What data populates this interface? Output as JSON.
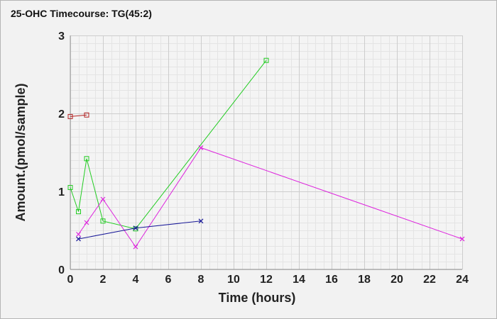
{
  "chart_data": {
    "type": "line",
    "title": "25-OHC Timecourse: TG(45:2)",
    "xlabel": "Time (hours)",
    "ylabel": "Amount.(pmol/sample)",
    "xlim": [
      0,
      24
    ],
    "ylim": [
      0,
      3
    ],
    "x_ticks": [
      "0",
      "2",
      "4",
      "6",
      "8",
      "10",
      "12",
      "14",
      "16",
      "18",
      "20",
      "22",
      "24"
    ],
    "y_ticks": [
      "0",
      "1",
      "2",
      "3"
    ],
    "grid": true,
    "legend": "none",
    "series": [
      {
        "color": "#b22222",
        "marker": "square",
        "x": [
          0,
          1
        ],
        "y": [
          1.96,
          1.98
        ]
      },
      {
        "color": "#22cc22",
        "marker": "square",
        "x": [
          0,
          0.5,
          1,
          2,
          4,
          12
        ],
        "y": [
          1.05,
          0.74,
          1.42,
          0.62,
          0.52,
          2.68
        ]
      },
      {
        "color": "#dd22dd",
        "marker": "x",
        "x": [
          0.5,
          1,
          2,
          4,
          8,
          24
        ],
        "y": [
          0.45,
          0.6,
          0.9,
          0.29,
          1.56,
          0.39
        ]
      },
      {
        "color": "#1a1a99",
        "marker": "x",
        "x": [
          0.5,
          4,
          8
        ],
        "y": [
          0.39,
          0.53,
          0.62
        ]
      }
    ]
  }
}
